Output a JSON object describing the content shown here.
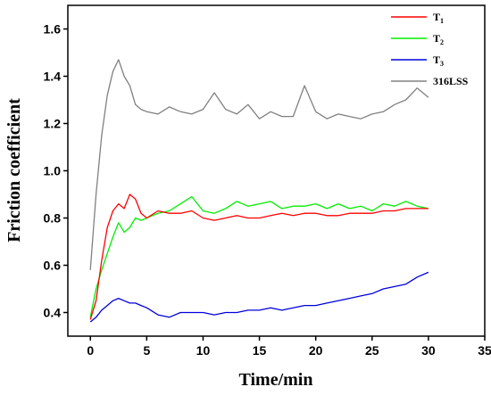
{
  "chart_data": {
    "type": "line",
    "xlabel": "Time/min",
    "ylabel": "Friction coefficient",
    "xlim": [
      -2,
      35
    ],
    "ylim": [
      0.3,
      1.7
    ],
    "xticks": [
      0,
      5,
      10,
      15,
      20,
      25,
      30,
      35
    ],
    "yticks": [
      0.4,
      0.6,
      0.8,
      1.0,
      1.2,
      1.4,
      1.6
    ],
    "xtick_labels": [
      "0",
      "5",
      "10",
      "15",
      "20",
      "25",
      "30",
      "35"
    ],
    "ytick_labels": [
      "0.4",
      "0.6",
      "0.8",
      "1.0",
      "1.2",
      "1.4",
      "1.6"
    ],
    "grid": false,
    "legend_position": "top-right",
    "series": [
      {
        "name": "T",
        "subscript": "1",
        "color": "#ff0000",
        "x": [
          0,
          0.5,
          1,
          1.5,
          2,
          2.5,
          3,
          3.5,
          4,
          4.5,
          5,
          6,
          7,
          8,
          9,
          10,
          11,
          12,
          13,
          14,
          15,
          16,
          17,
          18,
          19,
          20,
          21,
          22,
          23,
          24,
          25,
          26,
          27,
          28,
          29,
          30
        ],
        "y": [
          0.37,
          0.45,
          0.62,
          0.76,
          0.83,
          0.86,
          0.84,
          0.9,
          0.88,
          0.82,
          0.8,
          0.83,
          0.82,
          0.82,
          0.83,
          0.8,
          0.79,
          0.8,
          0.81,
          0.8,
          0.8,
          0.81,
          0.82,
          0.81,
          0.82,
          0.82,
          0.81,
          0.81,
          0.82,
          0.82,
          0.82,
          0.83,
          0.83,
          0.84,
          0.84,
          0.84
        ]
      },
      {
        "name": "T",
        "subscript": "2",
        "color": "#00ee00",
        "x": [
          0,
          0.5,
          1,
          1.5,
          2,
          2.5,
          3,
          3.5,
          4,
          4.5,
          5,
          6,
          7,
          8,
          9,
          10,
          11,
          12,
          13,
          14,
          15,
          16,
          17,
          18,
          19,
          20,
          21,
          22,
          23,
          24,
          25,
          26,
          27,
          28,
          29,
          30
        ],
        "y": [
          0.38,
          0.5,
          0.58,
          0.65,
          0.72,
          0.78,
          0.74,
          0.76,
          0.8,
          0.79,
          0.8,
          0.82,
          0.83,
          0.86,
          0.89,
          0.83,
          0.82,
          0.84,
          0.87,
          0.85,
          0.86,
          0.87,
          0.84,
          0.85,
          0.85,
          0.86,
          0.84,
          0.86,
          0.84,
          0.85,
          0.83,
          0.86,
          0.85,
          0.87,
          0.85,
          0.84
        ]
      },
      {
        "name": "T",
        "subscript": "3",
        "color": "#0000dd",
        "x": [
          0,
          0.5,
          1,
          1.5,
          2,
          2.5,
          3,
          3.5,
          4,
          4.5,
          5,
          6,
          7,
          8,
          9,
          10,
          11,
          12,
          13,
          14,
          15,
          16,
          17,
          18,
          19,
          20,
          21,
          22,
          23,
          24,
          25,
          26,
          27,
          28,
          29,
          30
        ],
        "y": [
          0.36,
          0.38,
          0.41,
          0.43,
          0.45,
          0.46,
          0.45,
          0.44,
          0.44,
          0.43,
          0.42,
          0.39,
          0.38,
          0.4,
          0.4,
          0.4,
          0.39,
          0.4,
          0.4,
          0.41,
          0.41,
          0.42,
          0.41,
          0.42,
          0.43,
          0.43,
          0.44,
          0.45,
          0.46,
          0.47,
          0.48,
          0.5,
          0.51,
          0.52,
          0.55,
          0.57
        ]
      },
      {
        "name": "316LSS",
        "color": "#808080",
        "x": [
          0,
          0.5,
          1,
          1.5,
          2,
          2.5,
          3,
          3.5,
          4,
          4.5,
          5,
          6,
          7,
          8,
          9,
          10,
          11,
          12,
          13,
          14,
          15,
          16,
          17,
          18,
          19,
          20,
          21,
          22,
          23,
          24,
          25,
          26,
          27,
          28,
          29,
          30
        ],
        "y": [
          0.58,
          0.9,
          1.15,
          1.32,
          1.42,
          1.47,
          1.4,
          1.36,
          1.28,
          1.26,
          1.25,
          1.24,
          1.27,
          1.25,
          1.24,
          1.26,
          1.33,
          1.26,
          1.24,
          1.28,
          1.22,
          1.25,
          1.23,
          1.23,
          1.36,
          1.25,
          1.22,
          1.24,
          1.23,
          1.22,
          1.24,
          1.25,
          1.28,
          1.3,
          1.35,
          1.31
        ]
      }
    ]
  }
}
